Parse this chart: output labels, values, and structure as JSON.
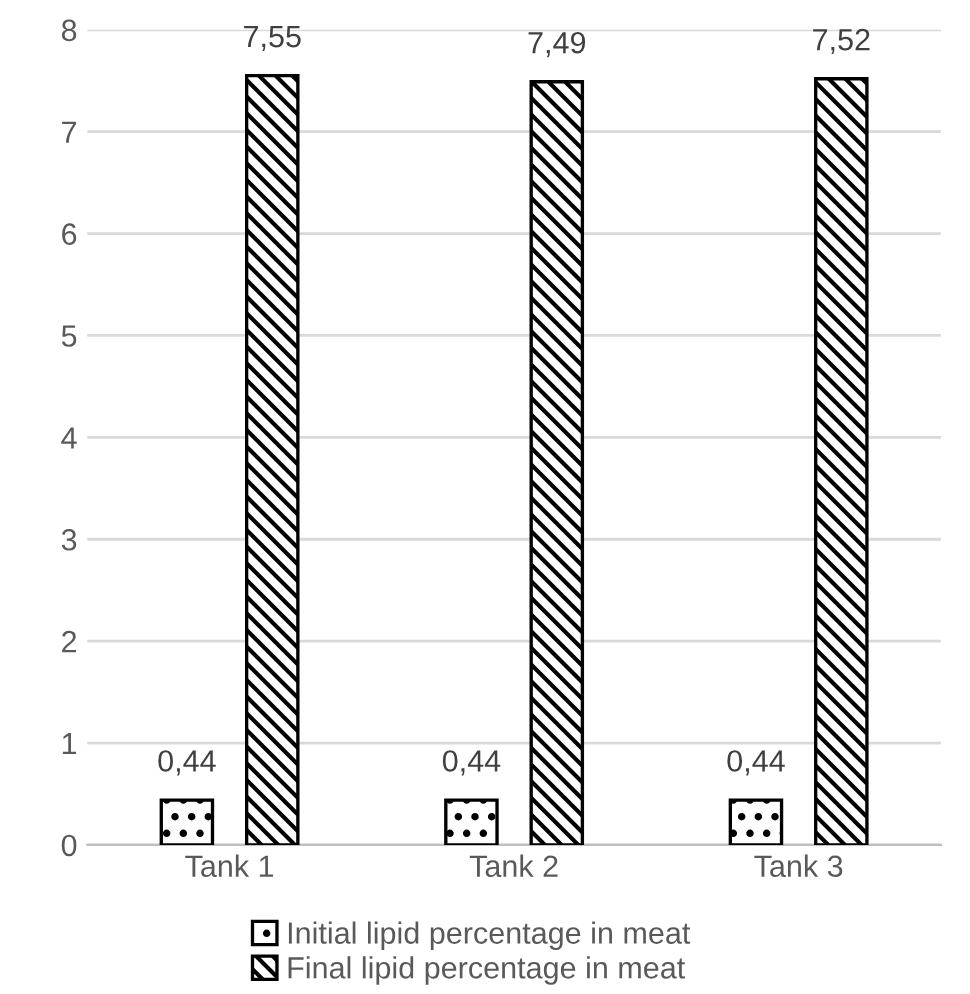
{
  "chart_data": {
    "type": "bar",
    "categories": [
      "Tank 1",
      "Tank 2",
      "Tank 3"
    ],
    "series": [
      {
        "name": "Initial lipid percentage in meat",
        "color": "#000000",
        "values": [
          0.44,
          0.44,
          0.44
        ],
        "value_labels": [
          "0,44",
          "0,44",
          "0,44"
        ]
      },
      {
        "name": "Final lipid percentage in meat",
        "color": "#000000",
        "values": [
          7.55,
          7.49,
          7.52
        ],
        "value_labels": [
          "7,55",
          "7,49",
          "7,52"
        ]
      }
    ],
    "ylim": [
      0,
      8
    ],
    "yticks": [
      0,
      1,
      2,
      3,
      4,
      5,
      6,
      7,
      8
    ],
    "grid": "y",
    "legend": "bottom"
  }
}
